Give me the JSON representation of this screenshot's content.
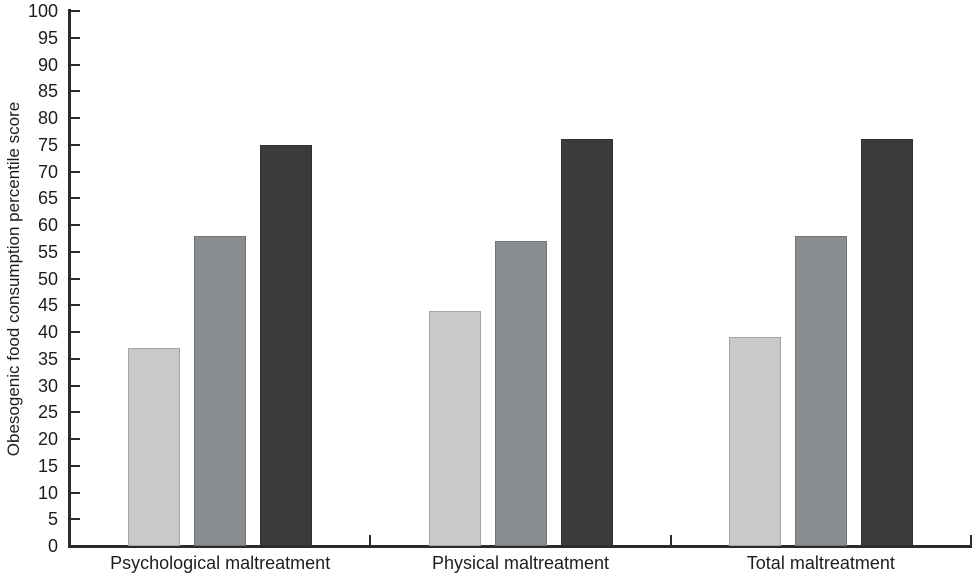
{
  "figure": {
    "background": "#ffffff",
    "axis_color": "#2b2b2d",
    "text_color": "#1d1d1f"
  },
  "chart_data": {
    "type": "bar",
    "title": "",
    "xlabel": "",
    "ylabel": "Obesogenic food consumption percentile score",
    "ylim": [
      0,
      100
    ],
    "ytick_step": 5,
    "grid": false,
    "legend": "none",
    "categories": [
      "Psychological maltreatment",
      "Physical maltreatment",
      "Total maltreatment"
    ],
    "series": [
      {
        "name": "light-gray-bar",
        "color": "#c9c9cb",
        "values": [
          37,
          44,
          39
        ]
      },
      {
        "name": "medium-gray-bar",
        "color": "#8a8d90",
        "values": [
          58,
          57,
          58
        ]
      },
      {
        "name": "dark-gray-bar",
        "color": "#3b3b3d",
        "values": [
          75,
          76,
          76
        ]
      }
    ]
  }
}
